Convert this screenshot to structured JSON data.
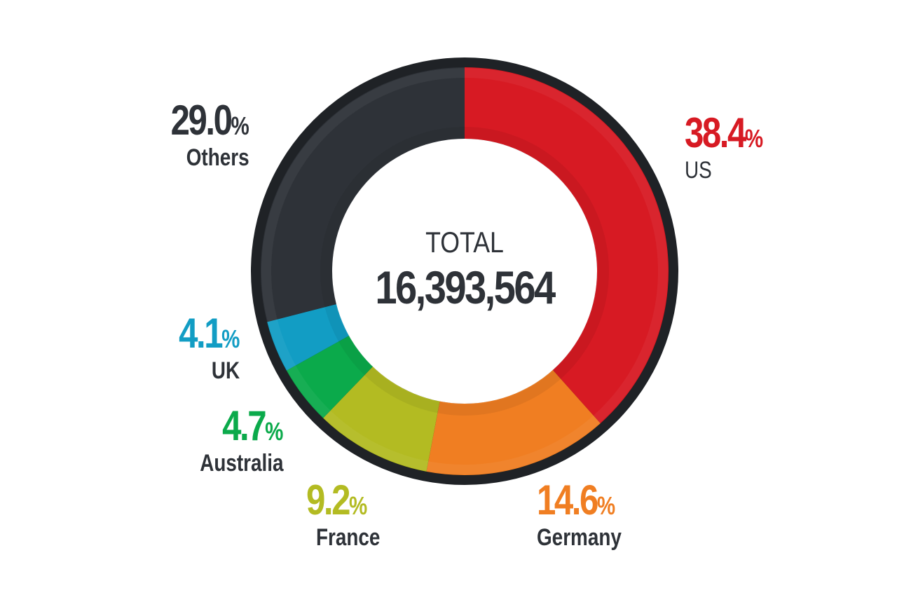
{
  "chart_data": {
    "type": "pie",
    "subtype": "donut",
    "title": "",
    "center_label": "TOTAL",
    "center_value": "16,393,564",
    "total": 16393564,
    "unit": "%",
    "categories": [
      "US",
      "Germany",
      "France",
      "Australia",
      "UK",
      "Others"
    ],
    "values": [
      38.4,
      14.6,
      9.2,
      4.7,
      4.1,
      29.0
    ],
    "colors": [
      "#D71A23",
      "#F07E22",
      "#B3BB22",
      "#0BAA4B",
      "#129DC4",
      "#2E3238"
    ],
    "start_angle_deg": 0,
    "direction": "clockwise",
    "legend": "none (direct labels)"
  },
  "center": {
    "label": "TOTAL",
    "value": "16,393,564"
  },
  "labels": {
    "us": {
      "pct": "38.4",
      "sign": "%",
      "name": "US",
      "color": "#D71A23"
    },
    "germany": {
      "pct": "14.6",
      "sign": "%",
      "name": "Germany",
      "color": "#F07E22"
    },
    "france": {
      "pct": "9.2",
      "sign": "%",
      "name": "France",
      "color": "#B3BB22"
    },
    "australia": {
      "pct": "4.7",
      "sign": "%",
      "name": "Australia",
      "color": "#0BAA4B"
    },
    "uk": {
      "pct": "4.1",
      "sign": "%",
      "name": "UK",
      "color": "#129DC4"
    },
    "others": {
      "pct": "29.0",
      "sign": "%",
      "name": "Others",
      "color": "#2E3238"
    }
  },
  "style": {
    "ring_border_color": "#1F2226",
    "text_dark": "#2E3238"
  }
}
